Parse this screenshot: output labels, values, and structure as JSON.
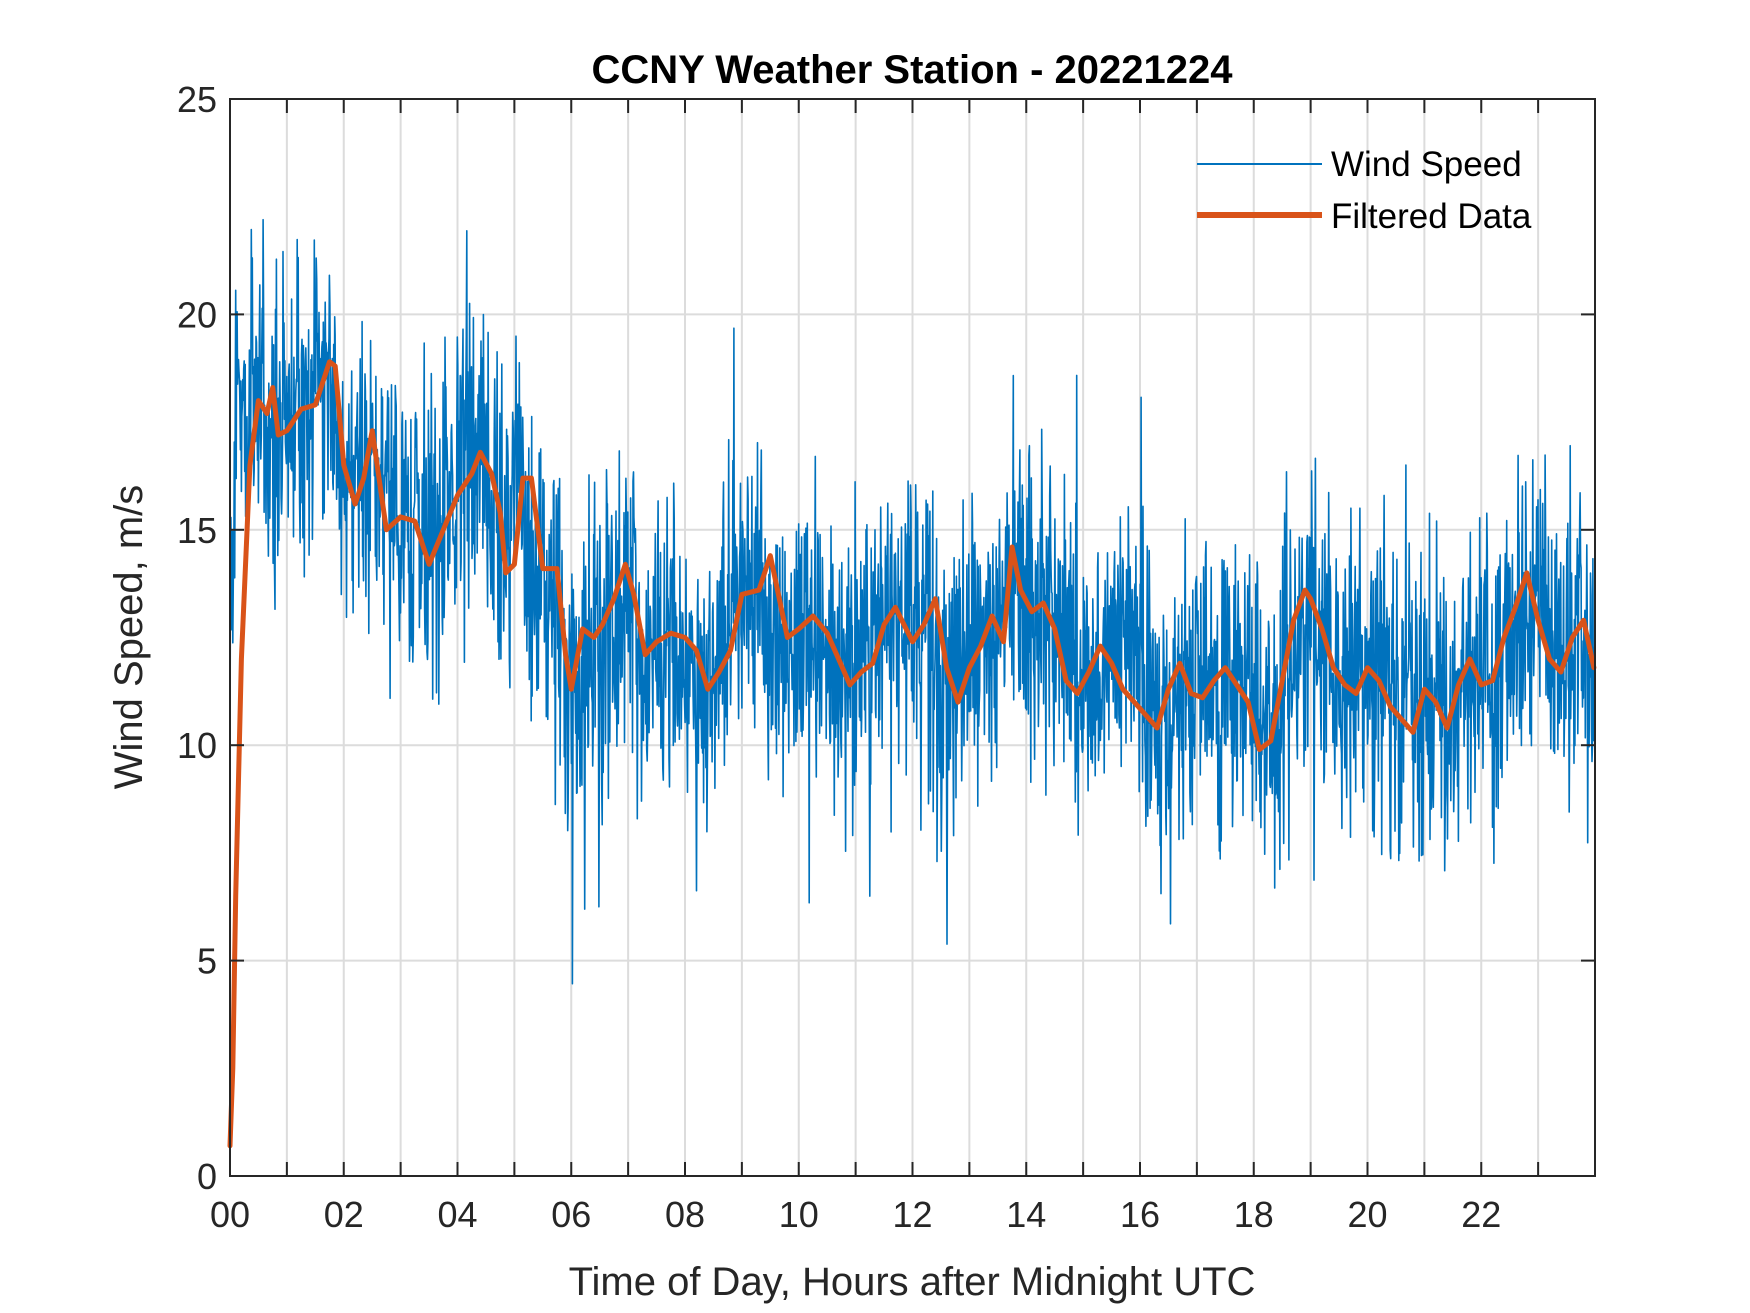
{
  "chart_data": {
    "type": "line",
    "title": "CCNY Weather Station - 20221224",
    "xlabel": "Time of Day, Hours after Midnight UTC",
    "ylabel": "Wind Speed, m/s",
    "xlim": [
      0,
      24
    ],
    "ylim": [
      0,
      25
    ],
    "xticks": [
      0,
      2,
      4,
      6,
      8,
      10,
      12,
      14,
      16,
      18,
      20,
      22
    ],
    "xtick_labels": [
      "00",
      "02",
      "04",
      "06",
      "08",
      "10",
      "12",
      "14",
      "16",
      "18",
      "20",
      "22"
    ],
    "yticks": [
      0,
      5,
      10,
      15,
      20,
      25
    ],
    "ytick_labels": [
      "0",
      "5",
      "10",
      "15",
      "20",
      "25"
    ],
    "x_grid_step": 1,
    "grid": true,
    "legend_location": "top-right",
    "series": [
      {
        "name": "Wind Speed",
        "color": "#0072BD",
        "style": "raw-noisy",
        "noise_amplitude": 2.6,
        "x": [
          0,
          0.05,
          0.1,
          0.2,
          0.35,
          0.5,
          0.75,
          1.0,
          1.25,
          1.5,
          1.75,
          2.0,
          2.25,
          2.5,
          2.75,
          3.0,
          3.25,
          3.5,
          3.75,
          4.0,
          4.25,
          4.5,
          4.75,
          5.0,
          5.25,
          5.5,
          5.75,
          6.0,
          6.25,
          6.5,
          6.75,
          7.0,
          7.25,
          7.5,
          7.75,
          8.0,
          8.25,
          8.5,
          8.75,
          9.0,
          9.25,
          9.5,
          9.75,
          10.0,
          10.25,
          10.5,
          10.75,
          11.0,
          11.25,
          11.5,
          11.75,
          12.0,
          12.25,
          12.5,
          12.75,
          13.0,
          13.25,
          13.5,
          13.75,
          14.0,
          14.25,
          14.5,
          14.75,
          15.0,
          15.25,
          15.5,
          15.75,
          16.0,
          16.25,
          16.5,
          16.75,
          17.0,
          17.25,
          17.5,
          17.75,
          18.0,
          18.25,
          18.5,
          18.75,
          19.0,
          19.25,
          19.5,
          19.75,
          20.0,
          20.25,
          20.5,
          20.75,
          21.0,
          21.25,
          21.5,
          21.75,
          22.0,
          22.25,
          22.5,
          22.75,
          23.0,
          23.25,
          23.5,
          23.75,
          23.98
        ],
        "values": [
          12.5,
          14.0,
          17.5,
          18.5,
          17.8,
          18.2,
          17.5,
          17.3,
          18.0,
          18.2,
          18.6,
          16.2,
          16.0,
          16.8,
          15.3,
          15.2,
          14.9,
          14.5,
          15.5,
          16.2,
          16.5,
          15.8,
          14.2,
          16.0,
          15.2,
          13.9,
          12.8,
          11.5,
          12.6,
          12.4,
          12.9,
          13.8,
          12.0,
          12.2,
          12.6,
          12.5,
          11.4,
          11.6,
          12.8,
          13.5,
          13.8,
          12.5,
          12.4,
          12.9,
          12.7,
          11.8,
          11.6,
          12.1,
          12.5,
          12.9,
          12.4,
          13.0,
          12.6,
          11.3,
          11.8,
          12.3,
          12.9,
          12.6,
          14.6,
          13.5,
          13.2,
          13.3,
          12.5,
          11.5,
          11.3,
          12.0,
          12.2,
          11.7,
          10.9,
          10.5,
          11.3,
          11.9,
          11.1,
          11.2,
          11.6,
          11.3,
          10.0,
          10.6,
          12.0,
          13.6,
          12.6,
          11.8,
          11.3,
          11.8,
          11.4,
          10.9,
          11.4,
          10.5,
          11.2,
          10.5,
          11.6,
          11.8,
          11.6,
          12.6,
          13.1,
          13.9,
          12.6,
          11.9,
          12.9,
          11.7
        ]
      },
      {
        "name": "Filtered Data",
        "color": "#D95319",
        "style": "smooth",
        "x": [
          0,
          0.05,
          0.1,
          0.2,
          0.35,
          0.5,
          0.65,
          0.75,
          0.85,
          1.0,
          1.25,
          1.5,
          1.75,
          1.85,
          2.0,
          2.2,
          2.35,
          2.5,
          2.75,
          3.0,
          3.25,
          3.5,
          3.75,
          4.0,
          4.25,
          4.4,
          4.6,
          4.75,
          4.85,
          5.0,
          5.15,
          5.3,
          5.5,
          5.75,
          5.9,
          6.0,
          6.2,
          6.4,
          6.55,
          6.75,
          6.95,
          7.1,
          7.3,
          7.5,
          7.75,
          8.0,
          8.2,
          8.4,
          8.6,
          8.8,
          9.0,
          9.3,
          9.5,
          9.8,
          10.0,
          10.25,
          10.5,
          10.7,
          10.9,
          11.1,
          11.3,
          11.5,
          11.7,
          12.0,
          12.2,
          12.4,
          12.6,
          12.8,
          13.0,
          13.2,
          13.4,
          13.6,
          13.75,
          13.9,
          14.1,
          14.3,
          14.5,
          14.7,
          14.9,
          15.1,
          15.3,
          15.5,
          15.7,
          15.9,
          16.1,
          16.3,
          16.5,
          16.7,
          16.9,
          17.1,
          17.3,
          17.5,
          17.7,
          17.9,
          18.1,
          18.3,
          18.5,
          18.7,
          18.9,
          19.0,
          19.2,
          19.4,
          19.6,
          19.8,
          20.0,
          20.2,
          20.4,
          20.6,
          20.8,
          21.0,
          21.2,
          21.4,
          21.6,
          21.8,
          22.0,
          22.2,
          22.4,
          22.6,
          22.8,
          23.0,
          23.2,
          23.4,
          23.6,
          23.8,
          23.98
        ],
        "values": [
          0.7,
          2.5,
          6.5,
          12.0,
          16.5,
          18.0,
          17.7,
          18.3,
          17.2,
          17.3,
          17.8,
          17.9,
          18.9,
          18.8,
          16.5,
          15.6,
          16.2,
          17.3,
          15.0,
          15.3,
          15.2,
          14.2,
          15.0,
          15.8,
          16.3,
          16.8,
          16.3,
          15.4,
          14.0,
          14.2,
          16.2,
          16.2,
          14.1,
          14.1,
          12.1,
          11.3,
          12.7,
          12.5,
          12.8,
          13.4,
          14.2,
          13.5,
          12.1,
          12.4,
          12.6,
          12.5,
          12.2,
          11.3,
          11.7,
          12.2,
          13.5,
          13.6,
          14.4,
          12.5,
          12.7,
          13.0,
          12.6,
          12.0,
          11.4,
          11.7,
          11.9,
          12.8,
          13.2,
          12.4,
          12.8,
          13.4,
          11.8,
          11.0,
          11.8,
          12.3,
          13.0,
          12.4,
          14.6,
          13.6,
          13.1,
          13.3,
          12.7,
          11.5,
          11.2,
          11.7,
          12.3,
          11.9,
          11.3,
          11.0,
          10.7,
          10.4,
          11.3,
          11.9,
          11.2,
          11.1,
          11.5,
          11.8,
          11.4,
          11.0,
          9.9,
          10.1,
          11.5,
          12.9,
          13.6,
          13.4,
          12.7,
          11.8,
          11.4,
          11.2,
          11.8,
          11.5,
          10.9,
          10.6,
          10.3,
          11.3,
          11.0,
          10.4,
          11.4,
          12.0,
          11.4,
          11.5,
          12.5,
          13.2,
          14.0,
          12.9,
          12.0,
          11.7,
          12.5,
          12.9,
          11.8
        ]
      }
    ]
  }
}
